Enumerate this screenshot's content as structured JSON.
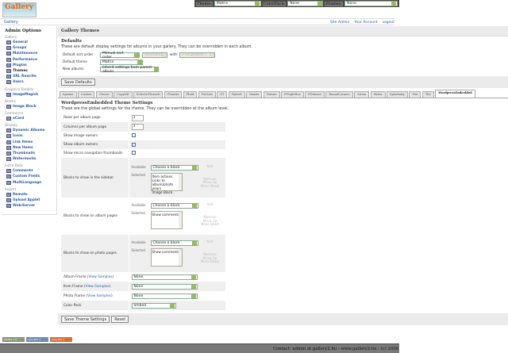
{
  "topbar": {
    "theme_label": "Theme:",
    "theme_value": "Matrix",
    "colorpack_label": "ColorPack:",
    "colorpack_value": "None",
    "frames_label": "Frames:",
    "frames_value": "None"
  },
  "logo": {
    "text": "Gallery"
  },
  "breadcrumb": "Gallery",
  "top_links": [
    "Site Admin",
    "Your Account",
    "Logout"
  ],
  "sidebar": {
    "title": "Admin Options",
    "groups": [
      {
        "label": "Gallery",
        "items": [
          "General",
          "Groups",
          "Maintenance",
          "Performance",
          "Plugins",
          "Themes",
          "URL Rewrite",
          "Users"
        ]
      },
      {
        "label": "Graphics Toolkits",
        "items": [
          "ImageMagick"
        ]
      },
      {
        "label": "Blocks",
        "items": [
          "Image Block"
        ]
      },
      {
        "label": "Commerce",
        "items": [
          "eCard"
        ]
      },
      {
        "label": "Display",
        "items": [
          "Dynamic Albums",
          "Icons",
          "Link Items",
          "New Items",
          "Thumbnails",
          "Watermarks"
        ]
      },
      {
        "label": "Extra Data",
        "items": [
          "Comments",
          "Custom Fields",
          "MultiLanguage"
        ]
      },
      {
        "label": "Import",
        "items": [
          "Remote",
          "Upload Applet",
          "Web/Server"
        ]
      }
    ],
    "current": "Themes"
  },
  "main": {
    "title": "Gallery Themes",
    "defaults": {
      "title": "Defaults",
      "description": "These are default display settings for albums in your gallery. They can be overridden in each album.",
      "sort_label": "Default sort order",
      "sort_value": "Manual sort order",
      "direction_value": "Ascending",
      "with_label": "with",
      "presort_value": "« no presort »",
      "theme_label": "Default theme",
      "theme_value": "Matrix",
      "new_albums_label": "New albums",
      "new_albums_value": "Inherit settings from parent album",
      "save_button": "Save Defaults"
    },
    "tabs": [
      "Ajaxian",
      "Carbon",
      "Classic",
      "Copyleft",
      "EclecticThreads",
      "Floatrix",
      "Fluid",
      "ForSale",
      "G1",
      "Hybrid",
      "Matrix",
      "Nature",
      "PGlightBox",
      "PGtheme",
      "RoundCorners",
      "Siriux",
      "Slider",
      "Splatbang",
      "Tint",
      "Tile",
      "WordpressEmbedded"
    ],
    "active_tab": "WordpressEmbedded",
    "settings": {
      "title": "WordpressEmbedded Theme Settings",
      "description": "These are the global settings for the theme. They can be overridden at the album level.",
      "rows_label": "Rows per album page",
      "rows_value": "3",
      "cols_label": "Columns per album page",
      "cols_value": "3",
      "image_owners_label": "Show image owners",
      "image_owners": false,
      "album_owners_label": "Show album owners",
      "album_owners": true,
      "micro_nav_label": "Show micro navigation thumbnails",
      "micro_nav": false,
      "available_label": "Available",
      "selected_label": "Selected",
      "choose": "Choose a block",
      "add": "Add",
      "remove": "Remove",
      "move_up": "Move Up",
      "move_down": "Move Down",
      "sidebar_blocks_label": "Blocks to show in the sidebar",
      "sidebar_blocks": [
        "Item actions",
        "Links to album/photo peers",
        "Image Block"
      ],
      "album_blocks_label": "Blocks to show on album pages",
      "album_blocks": [
        "Show comments"
      ],
      "photo_blocks_label": "Blocks to show on photo pages",
      "photo_blocks": [
        "Show comments"
      ],
      "album_frame_label": "Album Frame",
      "item_frame_label": "Item Frame",
      "photo_frame_label": "Photo Frame",
      "view_samples": "View Samples",
      "album_frame": "None",
      "item_frame": "None",
      "photo_frame": "None",
      "color_pack_label": "Color Pack",
      "color_pack": "embed",
      "save_button": "Save Theme Settings",
      "reset_button": "Reset"
    }
  },
  "badges": [
    "XHTML 1.0",
    "GALLERY 2",
    "GALLERY 2"
  ],
  "footer": "Contact: admin at gallery2.hu - www.gallery2.hu - (c) 2006"
}
